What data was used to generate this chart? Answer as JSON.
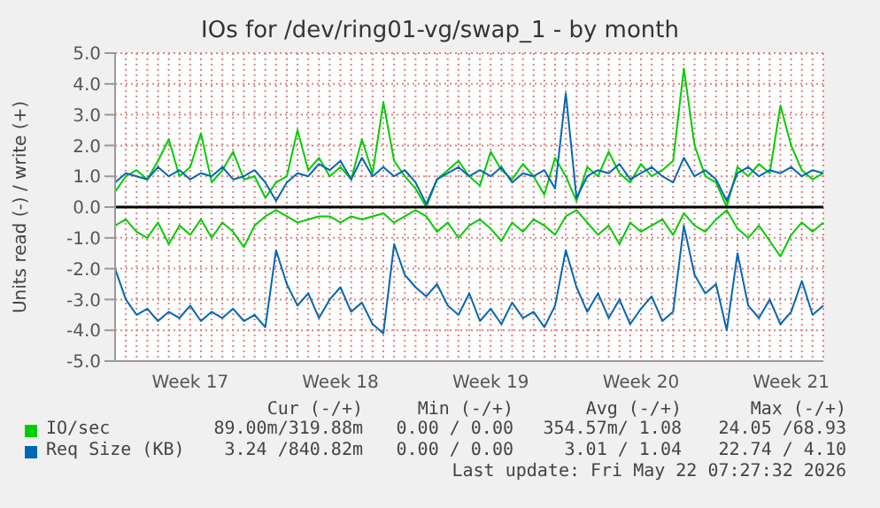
{
  "chart_data": {
    "type": "line",
    "title": "IOs for /dev/ring01-vg/swap_1 - by month",
    "ylabel": "Units read (-) / write (+)",
    "categories": [
      null,
      null,
      null,
      null,
      null,
      null,
      null,
      "Week 17",
      null,
      null,
      null,
      null,
      null,
      null,
      null,
      null,
      null,
      null,
      null,
      null,
      null,
      "Week 18",
      null,
      null,
      null,
      null,
      null,
      null,
      null,
      null,
      null,
      null,
      null,
      null,
      null,
      "Week 19",
      null,
      null,
      null,
      null,
      null,
      null,
      null,
      null,
      null,
      null,
      null,
      null,
      null,
      "Week 20",
      null,
      null,
      null,
      null,
      null,
      null,
      null,
      null,
      null,
      null,
      null,
      null,
      null,
      "Week 21",
      null,
      null,
      null
    ],
    "ylim": [
      -5,
      5
    ],
    "yticks": [
      {
        "value": -5,
        "label": "-5.0"
      },
      {
        "value": -4,
        "label": "-4.0"
      },
      {
        "value": -3,
        "label": "-3.0"
      },
      {
        "value": -2,
        "label": "-2.0"
      },
      {
        "value": -1,
        "label": "-1.0"
      },
      {
        "value": 0,
        "label": "0.0"
      },
      {
        "value": 1,
        "label": "1.0"
      },
      {
        "value": 2,
        "label": "2.0"
      },
      {
        "value": 3,
        "label": "3.0"
      },
      {
        "value": 4,
        "label": "4.0"
      },
      {
        "value": 5,
        "label": "5.0"
      }
    ],
    "grid": true,
    "legend": "bottom",
    "ref_lines": [
      {
        "axis": "y",
        "value": 0,
        "color": "#000000"
      }
    ],
    "series": [
      {
        "name": "IO/sec",
        "color": "#00cc00",
        "values": [
          0.5,
          1.0,
          1.2,
          0.9,
          1.5,
          2.2,
          1.0,
          1.3,
          2.4,
          0.8,
          1.2,
          1.8,
          0.9,
          1.0,
          0.3,
          0.8,
          1.0,
          2.5,
          1.2,
          1.6,
          1.0,
          1.3,
          0.9,
          2.2,
          1.1,
          3.4,
          1.5,
          1.0,
          0.6,
          0.0,
          0.9,
          1.2,
          1.5,
          1.0,
          0.7,
          1.8,
          1.2,
          0.9,
          1.4,
          1.0,
          0.4,
          1.6,
          1.0,
          0.2,
          1.3,
          1.0,
          1.8,
          1.1,
          0.8,
          1.4,
          1.0,
          1.2,
          1.5,
          4.5,
          2.0,
          1.0,
          0.8,
          0.0,
          1.3,
          1.0,
          1.4,
          1.1,
          3.3,
          2.0,
          1.2,
          0.9,
          1.1
        ]
      },
      {
        "color": "#00cc00",
        "values": [
          -0.6,
          -0.4,
          -0.8,
          -1.0,
          -0.5,
          -1.2,
          -0.6,
          -0.9,
          -0.4,
          -1.0,
          -0.5,
          -0.8,
          -1.3,
          -0.6,
          -0.3,
          -0.1,
          -0.3,
          -0.5,
          -0.4,
          -0.3,
          -0.3,
          -0.5,
          -0.3,
          -0.4,
          -0.3,
          -0.2,
          -0.5,
          -0.3,
          -0.1,
          -0.3,
          -0.8,
          -0.5,
          -1.0,
          -0.6,
          -0.4,
          -0.7,
          -1.1,
          -0.5,
          -0.8,
          -0.4,
          -0.6,
          -0.9,
          -0.3,
          -0.1,
          -0.5,
          -0.9,
          -0.6,
          -1.2,
          -0.5,
          -0.8,
          -0.6,
          -0.4,
          -0.9,
          -0.2,
          -0.6,
          -0.8,
          -0.4,
          -0.1,
          -0.7,
          -1.0,
          -0.6,
          -1.1,
          -1.6,
          -0.9,
          -0.5,
          -0.8,
          -0.5
        ]
      },
      {
        "name": "Req Size (KB)",
        "color": "#0066b3",
        "values": [
          0.8,
          1.1,
          1.0,
          0.9,
          1.3,
          1.0,
          1.2,
          0.9,
          1.1,
          1.0,
          1.3,
          0.9,
          1.0,
          1.2,
          0.8,
          0.2,
          0.8,
          1.1,
          1.0,
          1.4,
          1.2,
          1.5,
          0.9,
          1.6,
          1.0,
          1.3,
          1.0,
          1.2,
          0.8,
          0.1,
          0.9,
          1.1,
          1.3,
          1.0,
          1.2,
          1.0,
          1.3,
          0.8,
          1.1,
          1.0,
          1.2,
          0.6,
          3.7,
          0.3,
          1.0,
          1.2,
          1.1,
          1.4,
          0.9,
          1.1,
          1.3,
          1.0,
          0.8,
          1.6,
          1.0,
          1.2,
          0.9,
          0.2,
          1.1,
          1.3,
          1.0,
          1.2,
          1.1,
          1.3,
          1.0,
          1.2,
          1.1
        ]
      },
      {
        "color": "#0066b3",
        "values": [
          -2.0,
          -3.0,
          -3.5,
          -3.3,
          -3.7,
          -3.4,
          -3.6,
          -3.2,
          -3.7,
          -3.4,
          -3.6,
          -3.3,
          -3.7,
          -3.5,
          -3.9,
          -1.4,
          -2.5,
          -3.2,
          -2.8,
          -3.6,
          -3.0,
          -2.6,
          -3.4,
          -3.1,
          -3.8,
          -4.1,
          -1.2,
          -2.2,
          -2.6,
          -2.9,
          -2.5,
          -3.2,
          -3.5,
          -2.8,
          -3.7,
          -3.3,
          -3.8,
          -3.1,
          -3.6,
          -3.4,
          -3.9,
          -3.2,
          -1.4,
          -2.6,
          -3.4,
          -2.8,
          -3.6,
          -3.0,
          -3.8,
          -3.3,
          -2.9,
          -3.7,
          -3.4,
          -0.6,
          -2.2,
          -2.8,
          -2.5,
          -4.0,
          -1.5,
          -3.2,
          -3.6,
          -3.0,
          -3.8,
          -3.4,
          -2.4,
          -3.5,
          -3.2
        ]
      }
    ],
    "annotations": [
      "Cur (-/+)",
      "Min (-/+)",
      "Avg (-/+)",
      "Max (-/+)",
      "89.00m/319.88m",
      "0.00 / 0.00",
      "354.57m/ 1.08",
      "24.05 /68.93",
      "3.24 /840.82m",
      "0.00 / 0.00",
      "3.01 / 1.04",
      "22.74 / 4.10",
      "Last update: Fri May 22 07:27:32 2026"
    ]
  }
}
